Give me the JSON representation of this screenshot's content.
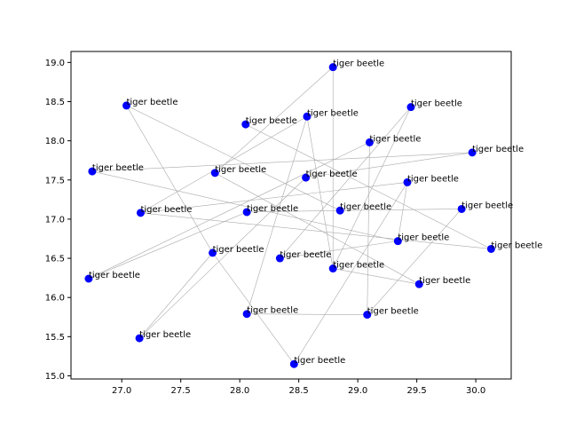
{
  "chart_data": {
    "type": "scatter",
    "title": "",
    "xlabel": "",
    "ylabel": "",
    "xlim": [
      26.57,
      30.3
    ],
    "ylim": [
      14.96,
      19.14
    ],
    "xticks": [
      27.0,
      27.5,
      28.0,
      28.5,
      29.0,
      29.5,
      30.0
    ],
    "xtick_labels": [
      "27.0",
      "27.5",
      "28.0",
      "28.5",
      "29.0",
      "29.5",
      "30.0"
    ],
    "yticks": [
      15.0,
      15.5,
      16.0,
      16.5,
      17.0,
      17.5,
      18.0,
      18.5,
      19.0
    ],
    "ytick_labels": [
      "15.0",
      "15.5",
      "16.0",
      "16.5",
      "17.0",
      "17.5",
      "18.0",
      "18.5",
      "19.0"
    ],
    "grid": false,
    "point_color": "#0000ff",
    "line_color": "#aaaaaa",
    "points": [
      {
        "x": 28.79,
        "y": 18.94,
        "label": "tiger beetle"
      },
      {
        "x": 27.04,
        "y": 18.45,
        "label": "tiger beetle"
      },
      {
        "x": 29.45,
        "y": 18.43,
        "label": "tiger beetle"
      },
      {
        "x": 28.57,
        "y": 18.31,
        "label": "tiger beetle"
      },
      {
        "x": 28.05,
        "y": 18.21,
        "label": "tiger beetle"
      },
      {
        "x": 29.1,
        "y": 17.98,
        "label": "tiger beetle"
      },
      {
        "x": 29.97,
        "y": 17.85,
        "label": "tiger beetle"
      },
      {
        "x": 26.75,
        "y": 17.61,
        "label": "tiger beetle"
      },
      {
        "x": 27.79,
        "y": 17.59,
        "label": "tiger beetle"
      },
      {
        "x": 28.56,
        "y": 17.53,
        "label": "tiger beetle"
      },
      {
        "x": 29.42,
        "y": 17.47,
        "label": "tiger beetle"
      },
      {
        "x": 27.16,
        "y": 17.08,
        "label": "tiger beetle"
      },
      {
        "x": 28.06,
        "y": 17.09,
        "label": "tiger beetle"
      },
      {
        "x": 28.85,
        "y": 17.11,
        "label": "tiger beetle"
      },
      {
        "x": 29.88,
        "y": 17.13,
        "label": "tiger beetle"
      },
      {
        "x": 29.34,
        "y": 16.72,
        "label": "tiger beetle"
      },
      {
        "x": 30.13,
        "y": 16.62,
        "label": "tiger beetle"
      },
      {
        "x": 27.77,
        "y": 16.57,
        "label": "tiger beetle"
      },
      {
        "x": 28.34,
        "y": 16.5,
        "label": "tiger beetle"
      },
      {
        "x": 28.79,
        "y": 16.37,
        "label": "tiger beetle"
      },
      {
        "x": 26.72,
        "y": 16.24,
        "label": "tiger beetle"
      },
      {
        "x": 29.52,
        "y": 16.17,
        "label": "tiger beetle"
      },
      {
        "x": 28.06,
        "y": 15.79,
        "label": "tiger beetle"
      },
      {
        "x": 29.08,
        "y": 15.78,
        "label": "tiger beetle"
      },
      {
        "x": 27.15,
        "y": 15.48,
        "label": "tiger beetle"
      },
      {
        "x": 28.46,
        "y": 15.15,
        "label": "tiger beetle"
      }
    ],
    "edges": [
      [
        0,
        19
      ],
      [
        0,
        8
      ],
      [
        1,
        17
      ],
      [
        1,
        13
      ],
      [
        2,
        19
      ],
      [
        2,
        18
      ],
      [
        3,
        22
      ],
      [
        3,
        11
      ],
      [
        4,
        16
      ],
      [
        5,
        20
      ],
      [
        5,
        23
      ],
      [
        6,
        7
      ],
      [
        6,
        9
      ],
      [
        7,
        15
      ],
      [
        8,
        21
      ],
      [
        9,
        24
      ],
      [
        10,
        25
      ],
      [
        10,
        11
      ],
      [
        12,
        13
      ],
      [
        12,
        20
      ],
      [
        13,
        14
      ],
      [
        14,
        23
      ],
      [
        15,
        18
      ],
      [
        16,
        11
      ],
      [
        17,
        24
      ],
      [
        19,
        21
      ],
      [
        22,
        23
      ],
      [
        17,
        25
      ],
      [
        3,
        19
      ],
      [
        15,
        10
      ]
    ]
  }
}
